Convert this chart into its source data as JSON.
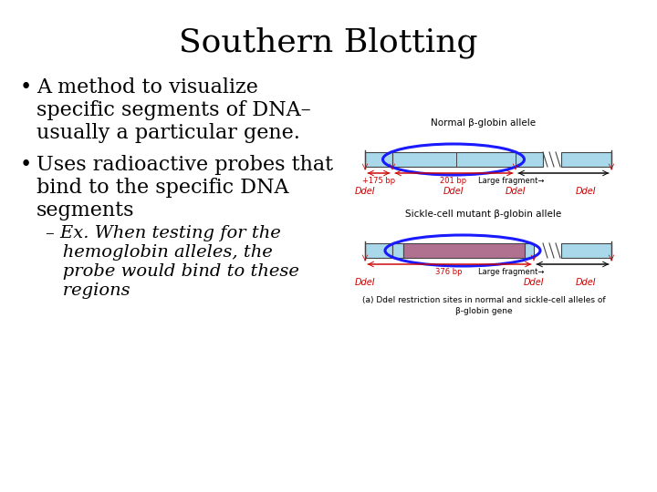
{
  "title": "Southern Blotting",
  "title_fontsize": 26,
  "background_color": "#ffffff",
  "bullet1_line1": "A method to visualize",
  "bullet1_line2": "specific segments of DNA–",
  "bullet1_line3": "usually a particular gene.",
  "bullet2_line1": "Uses radioactive probes that",
  "bullet2_line2": "bind to the specific DNA",
  "bullet2_line3": "segments",
  "sub_line1": "– Ex. When testing for the",
  "sub_line2": "   hemoglobin alleles, the",
  "sub_line3": "   probe would bind to these",
  "sub_line4": "   regions",
  "diagram_label1": "Normal β-globin allele",
  "diagram_label2": "Sickle-cell mutant β-globin allele",
  "caption": "(a) DdeI restriction sites in normal and sickle-cell alleles of\nβ-globin gene",
  "bar_color_light": "#a8d8ea",
  "bar_color_dark": "#b07090",
  "ellipse_color": "#1a1aff",
  "ddel_color": "#cc0000",
  "arrow_color": "#cc0000",
  "text_color": "#000000",
  "body_fontsize": 16,
  "sub_fontsize": 14,
  "diagram_fontsize": 7,
  "ddel_fontsize": 7
}
